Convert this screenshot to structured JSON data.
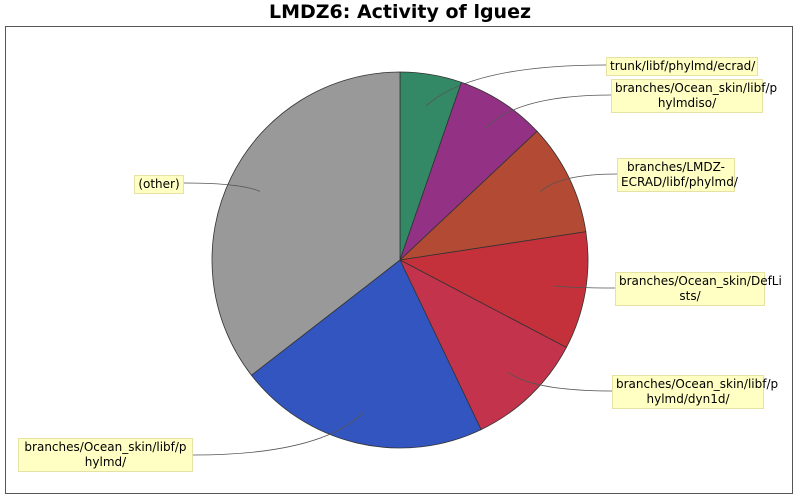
{
  "chart_data": {
    "type": "pie",
    "title": "LMDZ6: Activity of lguez",
    "slices": [
      {
        "label": "trunk/libf/phylmd/ecrad/",
        "value": 5.3,
        "color": "#338866"
      },
      {
        "label": "branches/Ocean_skin/libf/phylmdiso/",
        "value": 7.7,
        "color": "#933185"
      },
      {
        "label": "branches/LMDZ-ECRAD/libf/phylmd/",
        "value": 9.6,
        "color": "#b34a33"
      },
      {
        "label": "branches/Ocean_skin/DefLists/",
        "value": 10.1,
        "color": "#c5313b"
      },
      {
        "label": "branches/Ocean_skin/libf/phylmd/dyn1d/",
        "value": 10.2,
        "color": "#c3334b"
      },
      {
        "label": "branches/Ocean_skin/libf/phylmd/",
        "value": 21.6,
        "color": "#3355c0"
      },
      {
        "label": "(other)",
        "value": 35.5,
        "color": "#999999"
      }
    ]
  },
  "labels": [
    {
      "lines": [
        "trunk/libf/phylmd/ecrad/"
      ]
    },
    {
      "lines": [
        "branches/Ocean_skin/libf/p",
        "hylmdiso/"
      ]
    },
    {
      "lines": [
        "branches/LMDZ-",
        "ECRAD/libf/phylmd/"
      ]
    },
    {
      "lines": [
        "branches/Ocean_skin/DefLi",
        "sts/"
      ]
    },
    {
      "lines": [
        "branches/Ocean_skin/libf/p",
        "hylmd/dyn1d/"
      ]
    },
    {
      "lines": [
        "branches/Ocean_skin/libf/p",
        "hylmd/"
      ]
    },
    {
      "lines": [
        "(other)"
      ]
    }
  ]
}
